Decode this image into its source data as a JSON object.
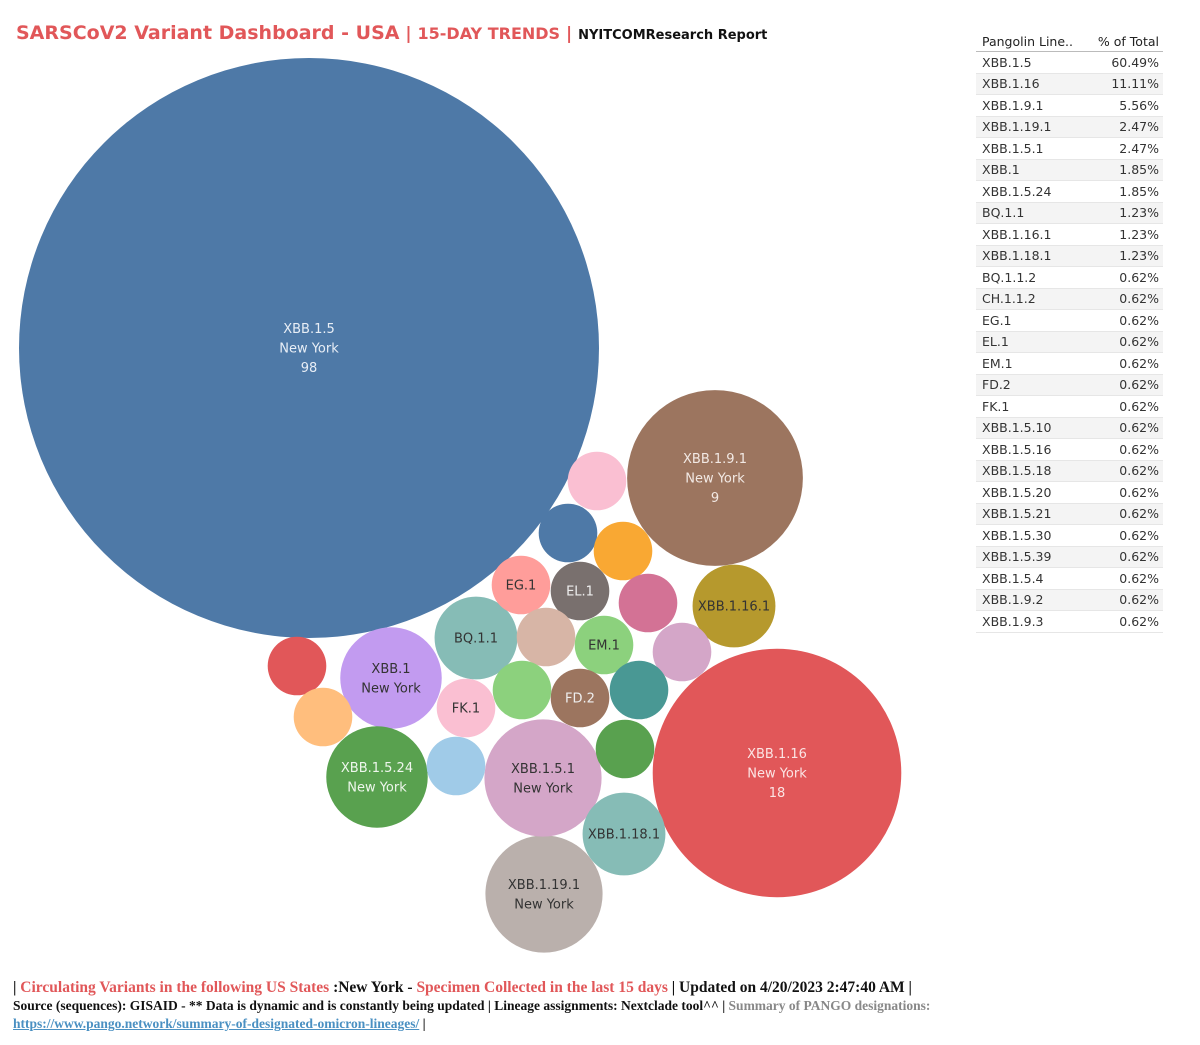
{
  "header": {
    "title_main": "SARSCoV2 Variant Dashboard - USA",
    "title_sep": " | ",
    "title_sub": "15-DAY TRENDS",
    "title_sep2": " | ",
    "title_report": "NYITCOMResearch Report"
  },
  "table": {
    "col_lineage": "Pangolin Line..",
    "col_pct": "% of Total",
    "rows": [
      {
        "lineage": "XBB.1.5",
        "pct": "60.49%"
      },
      {
        "lineage": "XBB.1.16",
        "pct": "11.11%"
      },
      {
        "lineage": "XBB.1.9.1",
        "pct": "5.56%"
      },
      {
        "lineage": "XBB.1.19.1",
        "pct": "2.47%"
      },
      {
        "lineage": "XBB.1.5.1",
        "pct": "2.47%"
      },
      {
        "lineage": "XBB.1",
        "pct": "1.85%"
      },
      {
        "lineage": "XBB.1.5.24",
        "pct": "1.85%"
      },
      {
        "lineage": "BQ.1.1",
        "pct": "1.23%"
      },
      {
        "lineage": "XBB.1.16.1",
        "pct": "1.23%"
      },
      {
        "lineage": "XBB.1.18.1",
        "pct": "1.23%"
      },
      {
        "lineage": "BQ.1.1.2",
        "pct": "0.62%"
      },
      {
        "lineage": "CH.1.1.2",
        "pct": "0.62%"
      },
      {
        "lineage": "EG.1",
        "pct": "0.62%"
      },
      {
        "lineage": "EL.1",
        "pct": "0.62%"
      },
      {
        "lineage": "EM.1",
        "pct": "0.62%"
      },
      {
        "lineage": "FD.2",
        "pct": "0.62%"
      },
      {
        "lineage": "FK.1",
        "pct": "0.62%"
      },
      {
        "lineage": "XBB.1.5.10",
        "pct": "0.62%"
      },
      {
        "lineage": "XBB.1.5.16",
        "pct": "0.62%"
      },
      {
        "lineage": "XBB.1.5.18",
        "pct": "0.62%"
      },
      {
        "lineage": "XBB.1.5.20",
        "pct": "0.62%"
      },
      {
        "lineage": "XBB.1.5.21",
        "pct": "0.62%"
      },
      {
        "lineage": "XBB.1.5.30",
        "pct": "0.62%"
      },
      {
        "lineage": "XBB.1.5.39",
        "pct": "0.62%"
      },
      {
        "lineage": "XBB.1.5.4",
        "pct": "0.62%"
      },
      {
        "lineage": "XBB.1.9.2",
        "pct": "0.62%"
      },
      {
        "lineage": "XBB.1.9.3",
        "pct": "0.62%"
      }
    ]
  },
  "chart_data": {
    "type": "bubble",
    "state": "New York",
    "series": [
      {
        "lineage": "XBB.1.5",
        "state": "New York",
        "count": 98,
        "color": "#4e79a7",
        "label_lines": [
          "XBB.1.5",
          "New York",
          "98"
        ],
        "label_color": "#e8eef6"
      },
      {
        "lineage": "XBB.1.16",
        "state": "New York",
        "count": 18,
        "color": "#e15759",
        "label_lines": [
          "XBB.1.16",
          "New York",
          "18"
        ],
        "label_color": "#fbe4e4"
      },
      {
        "lineage": "XBB.1.9.1",
        "state": "New York",
        "count": 9,
        "color": "#9c755f",
        "label_lines": [
          "XBB.1.9.1",
          "New York",
          "9"
        ],
        "label_color": "#f2e9e4"
      },
      {
        "lineage": "XBB.1.19.1",
        "state": "New York",
        "count": 4,
        "color": "#bab0ac",
        "label_lines": [
          "XBB.1.19.1",
          "New York"
        ],
        "label_color": "#333333"
      },
      {
        "lineage": "XBB.1.5.1",
        "state": "New York",
        "count": 4,
        "color": "#d4a6c8",
        "label_lines": [
          "XBB.1.5.1",
          "New York"
        ],
        "label_color": "#333333"
      },
      {
        "lineage": "XBB.1",
        "state": "New York",
        "count": 3,
        "color": "#c29bf0",
        "label_lines": [
          "XBB.1",
          "New York"
        ],
        "label_color": "#333333"
      },
      {
        "lineage": "XBB.1.5.24",
        "state": "New York",
        "count": 3,
        "color": "#59a14f",
        "label_lines": [
          "XBB.1.5.24",
          "New York"
        ],
        "label_color": "#eef6ec"
      },
      {
        "lineage": "BQ.1.1",
        "state": "New York",
        "count": 2,
        "color": "#86bcb6",
        "label_lines": [
          "BQ.1.1"
        ],
        "label_color": "#333333"
      },
      {
        "lineage": "XBB.1.16.1",
        "state": "New York",
        "count": 2,
        "color": "#b6992d",
        "label_lines": [
          "XBB.1.16.1"
        ],
        "label_color": "#333333"
      },
      {
        "lineage": "XBB.1.18.1",
        "state": "New York",
        "count": 2,
        "color": "#86bcb6",
        "label_lines": [
          "XBB.1.18.1"
        ],
        "label_color": "#333333"
      },
      {
        "lineage": "EG.1",
        "state": "New York",
        "count": 1,
        "color": "#ff9d9a",
        "label_lines": [
          "EG.1"
        ],
        "label_color": "#333333"
      },
      {
        "lineage": "EL.1",
        "state": "New York",
        "count": 1,
        "color": "#79706e",
        "label_lines": [
          "EL.1"
        ],
        "label_color": "#eeeeee"
      },
      {
        "lineage": "EM.1",
        "state": "New York",
        "count": 1,
        "color": "#8cd17d",
        "label_lines": [
          "EM.1"
        ],
        "label_color": "#333333"
      },
      {
        "lineage": "FD.2",
        "state": "New York",
        "count": 1,
        "color": "#9c755f",
        "label_lines": [
          "FD.2"
        ],
        "label_color": "#eeeeee"
      },
      {
        "lineage": "FK.1",
        "state": "New York",
        "count": 1,
        "color": "#fabfd2",
        "label_lines": [
          "FK.1"
        ],
        "label_color": "#333333"
      },
      {
        "lineage": "",
        "state": "New York",
        "count": 1,
        "color": "#fabfd2",
        "label_lines": [],
        "label_color": "#333333"
      },
      {
        "lineage": "",
        "state": "New York",
        "count": 1,
        "color": "#4e79a7",
        "label_lines": [],
        "label_color": "#333333"
      },
      {
        "lineage": "",
        "state": "New York",
        "count": 1,
        "color": "#f9a833",
        "label_lines": [],
        "label_color": "#333333"
      },
      {
        "lineage": "",
        "state": "New York",
        "count": 1,
        "color": "#d37295",
        "label_lines": [],
        "label_color": "#333333"
      },
      {
        "lineage": "",
        "state": "New York",
        "count": 1,
        "color": "#d4a6c8",
        "label_lines": [],
        "label_color": "#333333"
      },
      {
        "lineage": "",
        "state": "New York",
        "count": 1,
        "color": "#d7b5a6",
        "label_lines": [],
        "label_color": "#333333"
      },
      {
        "lineage": "",
        "state": "New York",
        "count": 1,
        "color": "#e15759",
        "label_lines": [],
        "label_color": "#333333"
      },
      {
        "lineage": "",
        "state": "New York",
        "count": 1,
        "color": "#ffbe7d",
        "label_lines": [],
        "label_color": "#333333"
      },
      {
        "lineage": "",
        "state": "New York",
        "count": 1,
        "color": "#a0cbe8",
        "label_lines": [],
        "label_color": "#333333"
      },
      {
        "lineage": "",
        "state": "New York",
        "count": 1,
        "color": "#8cd17d",
        "label_lines": [],
        "label_color": "#333333"
      },
      {
        "lineage": "",
        "state": "New York",
        "count": 1,
        "color": "#499894",
        "label_lines": [],
        "label_color": "#333333"
      },
      {
        "lineage": "",
        "state": "New York",
        "count": 1,
        "color": "#59a14f",
        "label_lines": [],
        "label_color": "#333333"
      }
    ]
  },
  "footer": {
    "l1_a": "| ",
    "l1_b": "Circulating Variants in the following US States",
    "l1_c": " :New York - ",
    "l1_d": "Specimen Collected in the last 15 days",
    "l1_e": " | Updated on 4/20/2023 2:47:40 AM |",
    "l2_a": "Source (sequences): GISAID - ** Data is dynamic and is constantly being updated | Lineage assignments: Nextclade tool^^ | ",
    "l2_b": "Summary of PANGO designations:",
    "link": "https://www.pango.network/summary-of-designated-omicron-lineages/",
    "l3_tail": " |"
  }
}
